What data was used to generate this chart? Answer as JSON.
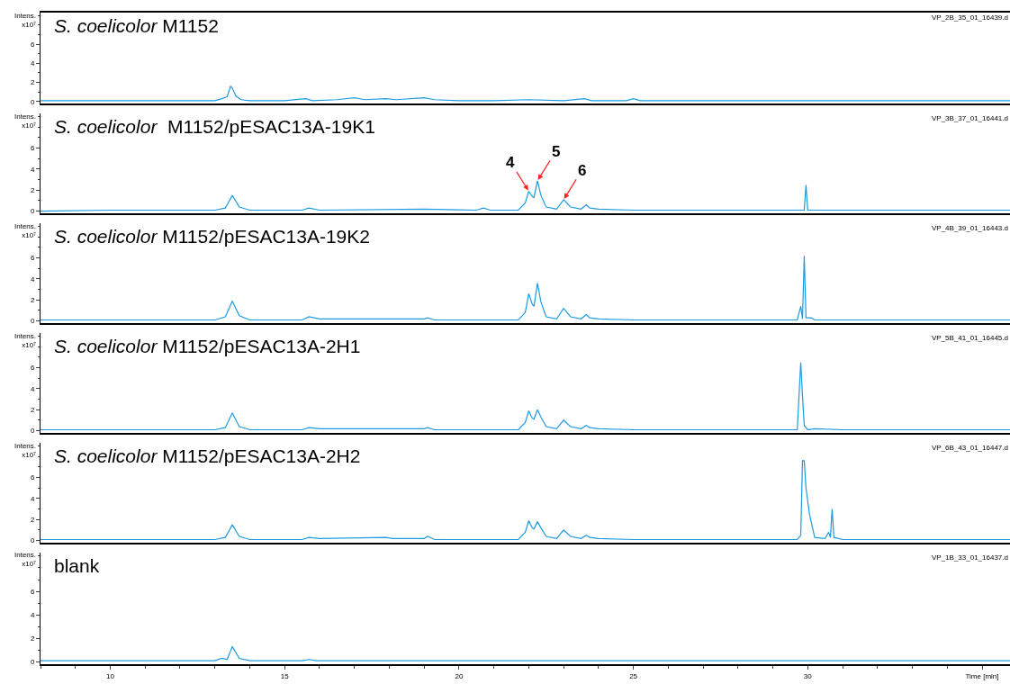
{
  "chart_data": [
    {
      "type": "line",
      "title": "S. coelicolor M1152",
      "ylabel": "Intens. x10⁷",
      "annotations": [
        "VP_2B_35_01_16439.d"
      ],
      "xlim": [
        8,
        35.8
      ],
      "ylim": [
        -0.2,
        9.3
      ],
      "yticks": [
        0,
        2,
        4,
        6
      ],
      "tick_labels": "y",
      "grid": false,
      "x": [
        8,
        9,
        10,
        11,
        12,
        13,
        13.2,
        13.35,
        13.45,
        13.5,
        13.6,
        13.75,
        14,
        15,
        15.6,
        15.8,
        16.5,
        17,
        17.3,
        17.9,
        18.2,
        19,
        19.3,
        20,
        21,
        22,
        23,
        23.6,
        23.8,
        24.8,
        25,
        25.2,
        27,
        29,
        30,
        32,
        34,
        35.8
      ],
      "series": [
        {
          "color": "#1e9be0",
          "values": [
            0.1,
            0.1,
            0.1,
            0.1,
            0.1,
            0.1,
            0.3,
            0.5,
            1.6,
            1.4,
            0.6,
            0.2,
            0.1,
            0.1,
            0.3,
            0.1,
            0.2,
            0.4,
            0.2,
            0.3,
            0.2,
            0.4,
            0.2,
            0.1,
            0.1,
            0.2,
            0.1,
            0.3,
            0.1,
            0.1,
            0.3,
            0.1,
            0.1,
            0.1,
            0.1,
            0.1,
            0.1,
            0.1
          ]
        }
      ]
    },
    {
      "type": "line",
      "title": "S. coelicolor  M1152/pESAC13A-19K1",
      "ylabel": "Intens. x10⁷",
      "annotations": [
        "VP_3B_37_01_16441.d",
        {
          "text": "4",
          "x": 22.0,
          "y": 1.9
        },
        {
          "text": "5",
          "x": 22.25,
          "y": 2.9
        },
        {
          "text": "6",
          "x": 23.0,
          "y": 1.1
        }
      ],
      "xlim": [
        8,
        35.8
      ],
      "ylim": [
        -0.2,
        9.3
      ],
      "yticks": [
        0,
        2,
        4,
        6
      ],
      "tick_labels": "y",
      "grid": false,
      "x": [
        8,
        10,
        12,
        13,
        13.3,
        13.5,
        13.7,
        14,
        15.5,
        15.7,
        16,
        19,
        20.5,
        20.7,
        20.9,
        21.7,
        21.9,
        22.0,
        22.1,
        22.15,
        22.25,
        22.35,
        22.5,
        22.8,
        23.0,
        23.2,
        23.5,
        23.65,
        23.75,
        24,
        25,
        27,
        29.8,
        29.9,
        29.95,
        30.0,
        31,
        35.8
      ],
      "series": [
        {
          "color": "#1e9be0",
          "values": [
            0,
            0.1,
            0.1,
            0.1,
            0.3,
            1.5,
            0.4,
            0.1,
            0.1,
            0.3,
            0.1,
            0.2,
            0.1,
            0.3,
            0.1,
            0.1,
            0.8,
            1.9,
            1.4,
            1.3,
            2.9,
            1.5,
            0.4,
            0.2,
            1.1,
            0.4,
            0.2,
            0.6,
            0.3,
            0.2,
            0.1,
            0.1,
            0.1,
            0.1,
            2.5,
            0.1,
            0.1,
            0.1
          ]
        }
      ]
    },
    {
      "type": "line",
      "title": "S. coelicolor M1152/pESAC13A-19K2",
      "ylabel": "Intens. x10⁷",
      "annotations": [
        "VP_4B_39_01_16443.d"
      ],
      "xlim": [
        8,
        35.8
      ],
      "ylim": [
        -0.2,
        9.3
      ],
      "yticks": [
        0,
        2,
        4,
        6
      ],
      "tick_labels": "y",
      "grid": false,
      "x": [
        8,
        10,
        12,
        13,
        13.3,
        13.5,
        13.7,
        14,
        15.5,
        15.7,
        16,
        19,
        19.1,
        19.3,
        21.7,
        21.9,
        22.0,
        22.1,
        22.15,
        22.25,
        22.35,
        22.5,
        22.8,
        23.0,
        23.2,
        23.5,
        23.65,
        23.75,
        24,
        25,
        27,
        29.7,
        29.8,
        29.85,
        29.9,
        29.95,
        30.1,
        30.2,
        31,
        35.8
      ],
      "series": [
        {
          "color": "#1e9be0",
          "values": [
            0.1,
            0.1,
            0.1,
            0.1,
            0.4,
            1.9,
            0.5,
            0.1,
            0.1,
            0.4,
            0.2,
            0.2,
            0.3,
            0.1,
            0.1,
            0.8,
            2.6,
            1.6,
            1.4,
            3.6,
            1.8,
            0.4,
            0.2,
            1.2,
            0.4,
            0.2,
            0.6,
            0.3,
            0.2,
            0.1,
            0.1,
            0.1,
            1.4,
            0.2,
            6.2,
            0.3,
            0.3,
            0.1,
            0.1,
            0.1
          ]
        }
      ]
    },
    {
      "type": "line",
      "title": "S. coelicolor M1152/pESAC13A-2H1",
      "ylabel": "Intens. x10⁷",
      "annotations": [
        "VP_5B_41_01_16445.d"
      ],
      "xlim": [
        8,
        35.8
      ],
      "ylim": [
        -0.2,
        9.3
      ],
      "yticks": [
        0,
        2,
        4,
        6
      ],
      "tick_labels": "y",
      "grid": false,
      "x": [
        8,
        10,
        12,
        13,
        13.3,
        13.5,
        13.7,
        14,
        15.5,
        15.7,
        16,
        17.9,
        18.1,
        19,
        19.1,
        19.3,
        21.7,
        21.9,
        22.0,
        22.1,
        22.15,
        22.25,
        22.35,
        22.5,
        22.8,
        23.0,
        23.2,
        23.5,
        23.65,
        23.75,
        24,
        25,
        27,
        29.7,
        29.8,
        29.85,
        29.9,
        30.0,
        30.2,
        31,
        35.8
      ],
      "series": [
        {
          "color": "#1e9be0",
          "values": [
            0.1,
            0.1,
            0.1,
            0.1,
            0.3,
            1.7,
            0.4,
            0.1,
            0.1,
            0.3,
            0.2,
            0.2,
            0.2,
            0.2,
            0.3,
            0.1,
            0.1,
            0.8,
            1.9,
            1.2,
            1.1,
            2.0,
            1.3,
            0.4,
            0.2,
            1.0,
            0.4,
            0.2,
            0.5,
            0.3,
            0.2,
            0.1,
            0.1,
            0.1,
            6.5,
            3.3,
            0.5,
            0.1,
            0.2,
            0.1,
            0.1
          ]
        }
      ]
    },
    {
      "type": "line",
      "title": "S. coelicolor M1152/pESAC13A-2H2",
      "ylabel": "Intens. x10⁷",
      "annotations": [
        "VP_6B_43_01_16447.d"
      ],
      "xlim": [
        8,
        35.8
      ],
      "ylim": [
        -0.2,
        9.3
      ],
      "yticks": [
        0,
        2,
        4,
        6
      ],
      "tick_labels": "y",
      "grid": false,
      "x": [
        8,
        10,
        12,
        13,
        13.3,
        13.5,
        13.7,
        14,
        15.5,
        15.7,
        16,
        17.9,
        18.1,
        19,
        19.1,
        19.3,
        21.7,
        21.9,
        22.0,
        22.1,
        22.15,
        22.25,
        22.35,
        22.5,
        22.8,
        23.0,
        23.2,
        23.5,
        23.65,
        23.75,
        24,
        25,
        27,
        29.7,
        29.8,
        29.85,
        29.9,
        29.95,
        30.05,
        30.2,
        30.5,
        30.6,
        30.65,
        30.7,
        30.75,
        31,
        35.8
      ],
      "series": [
        {
          "color": "#1e9be0",
          "values": [
            0.1,
            0.1,
            0.1,
            0.1,
            0.3,
            1.5,
            0.4,
            0.1,
            0.1,
            0.3,
            0.2,
            0.3,
            0.2,
            0.2,
            0.4,
            0.1,
            0.1,
            0.8,
            1.9,
            1.2,
            1.1,
            1.8,
            1.2,
            0.4,
            0.2,
            1.0,
            0.4,
            0.2,
            0.5,
            0.3,
            0.2,
            0.1,
            0.1,
            0.1,
            0.5,
            7.6,
            7.6,
            5.0,
            2.5,
            0.3,
            0.2,
            0.8,
            0.3,
            3.0,
            0.3,
            0.1,
            0.1
          ]
        }
      ]
    },
    {
      "type": "line",
      "title": "blank",
      "ylabel": "Intens. x10⁷",
      "annotations": [
        "VP_1B_33_01_16437.d"
      ],
      "xlim": [
        8,
        35.8
      ],
      "xticks": [
        10,
        15,
        20,
        25,
        30,
        {
          "value": 35,
          "label": "Time [min]"
        }
      ],
      "ylim": [
        -0.2,
        9.3
      ],
      "yticks": [
        0,
        2,
        4,
        6
      ],
      "grid": false,
      "x": [
        8,
        10,
        12,
        13,
        13.2,
        13.35,
        13.5,
        13.7,
        14,
        15.5,
        15.7,
        15.9,
        18,
        20,
        25,
        30,
        35.8
      ],
      "series": [
        {
          "color": "#1e9be0",
          "values": [
            0.1,
            0.1,
            0.1,
            0.1,
            0.3,
            0.2,
            1.3,
            0.3,
            0.1,
            0.1,
            0.2,
            0.1,
            0.1,
            0.1,
            0.1,
            0.1,
            0.1
          ]
        }
      ]
    }
  ]
}
